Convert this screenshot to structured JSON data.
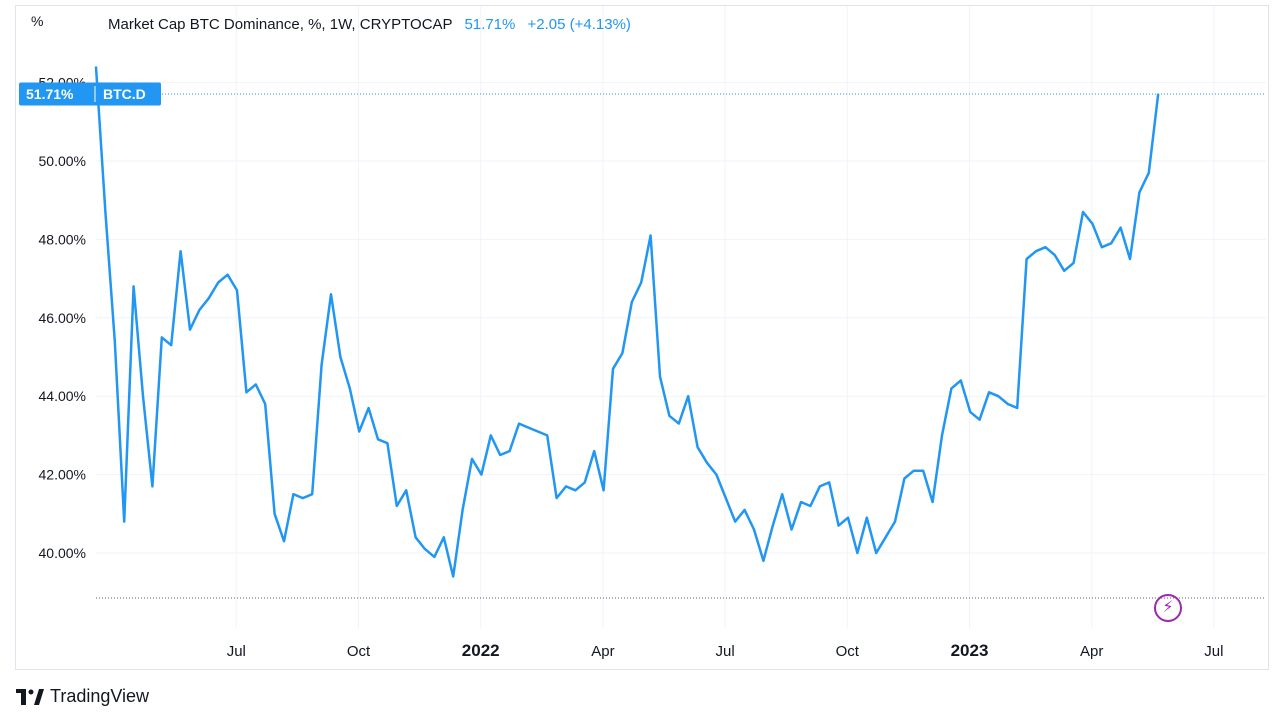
{
  "header": {
    "title": "Market Cap BTC Dominance, %, 1W, CRYPTOCAP",
    "last_value": "51.71%",
    "change": "+2.05 (+4.13%)",
    "unit_symbol": "%"
  },
  "price_badge": {
    "value": "51.71%",
    "symbol": "BTC.D"
  },
  "branding": {
    "name": "TradingView"
  },
  "colors": {
    "line": "#2196f3",
    "grid": "#f0f3fa",
    "badge": "#2196f3",
    "accent_icon": "#9c27b0"
  },
  "icons": {
    "logo": "tradingview-logo-icon",
    "lightning": "lightning-icon"
  },
  "chart_data": {
    "type": "line",
    "title": "Market Cap BTC Dominance, %, 1W, CRYPTOCAP",
    "xlabel": "",
    "ylabel": "",
    "ylim": [
      38.8,
      53.5
    ],
    "yticks": [
      "52.00%",
      "50.00%",
      "48.00%",
      "46.00%",
      "44.00%",
      "42.00%",
      "40.00%"
    ],
    "xticks": [
      {
        "label": "Jul",
        "index": 14.5,
        "bold": false
      },
      {
        "label": "Oct",
        "index": 27.5,
        "bold": false
      },
      {
        "label": "2022",
        "index": 40.5,
        "bold": true
      },
      {
        "label": "Apr",
        "index": 53.5,
        "bold": false
      },
      {
        "label": "Jul",
        "index": 66.5,
        "bold": false
      },
      {
        "label": "Oct",
        "index": 79.5,
        "bold": false
      },
      {
        "label": "2023",
        "index": 92.5,
        "bold": true
      },
      {
        "label": "Apr",
        "index": 105.5,
        "bold": false
      },
      {
        "label": "Jul",
        "index": 118.5,
        "bold": false
      }
    ],
    "grid": true,
    "series": [
      {
        "values": [
          52.4,
          48.7,
          45.4,
          40.8,
          46.8,
          44.0,
          41.7,
          45.5,
          45.3,
          47.7,
          45.7,
          46.2,
          46.5,
          46.9,
          47.1,
          46.7,
          44.1,
          44.3,
          43.8,
          41.0,
          40.3,
          41.5,
          41.4,
          41.5,
          44.8,
          46.6,
          45.0,
          44.2,
          43.1,
          43.7,
          42.9,
          42.8,
          41.2,
          41.6,
          40.4,
          40.1,
          39.9,
          40.4,
          39.4,
          41.1,
          42.4,
          42.0,
          43.0,
          42.5,
          42.6,
          43.3,
          43.2,
          43.1,
          43.0,
          41.4,
          41.7,
          41.6,
          41.8,
          42.6,
          41.6,
          44.7,
          45.1,
          46.4,
          46.9,
          48.1,
          44.5,
          43.5,
          43.3,
          44.0,
          42.7,
          42.3,
          42.0,
          41.4,
          40.8,
          41.1,
          40.6,
          39.8,
          40.7,
          41.5,
          40.6,
          41.3,
          41.2,
          41.7,
          41.8,
          40.7,
          40.9,
          40.0,
          40.9,
          40.0,
          40.4,
          40.8,
          41.9,
          42.1,
          42.1,
          41.3,
          43.0,
          44.2,
          44.4,
          43.6,
          43.4,
          44.1,
          44.0,
          43.8,
          43.7,
          47.5,
          47.7,
          47.8,
          47.6,
          47.2,
          47.4,
          48.7,
          48.4,
          47.8,
          47.9,
          48.3,
          47.5,
          49.2,
          49.7,
          51.71
        ]
      }
    ]
  }
}
